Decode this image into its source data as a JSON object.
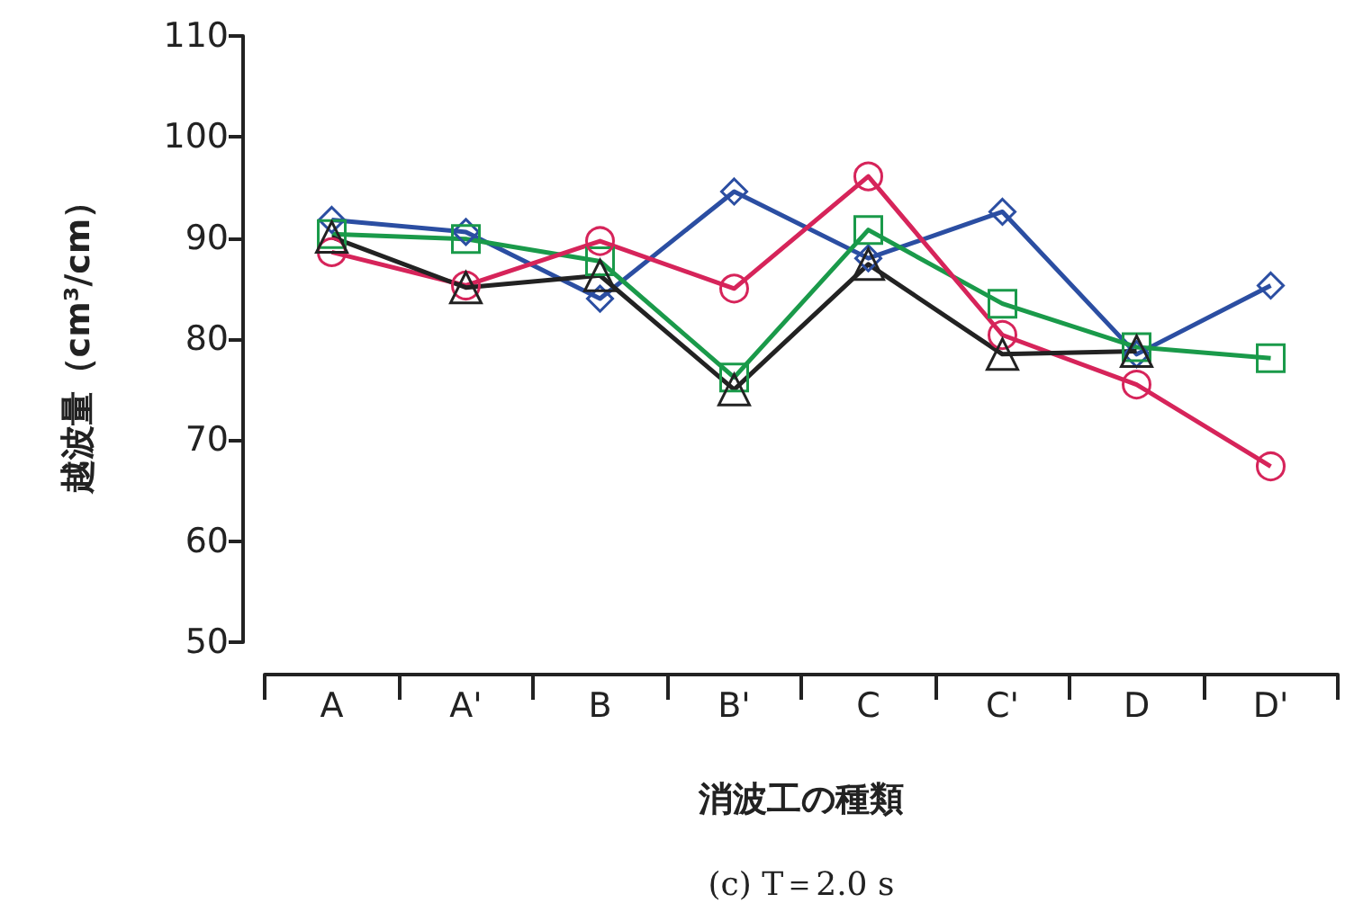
{
  "chart_data": {
    "type": "line",
    "title": "(c) T＝2.0 s",
    "xlabel": "消波工の種類",
    "ylabel": "越波量（cm³/cm）",
    "categories": [
      "A",
      "A'",
      "B",
      "B'",
      "C",
      "C'",
      "D",
      "D'"
    ],
    "ylim": [
      50,
      110
    ],
    "yticks": [
      50,
      60,
      70,
      80,
      90,
      100,
      110
    ],
    "grid": false,
    "line_style": "solid",
    "series": [
      {
        "color": "#2b4ea2",
        "marker": "diamond",
        "values": [
          91.8,
          90.6,
          84.0,
          94.6,
          88.0,
          92.6,
          78.5,
          85.3
        ]
      },
      {
        "color": "#1a9a4a",
        "marker": "square",
        "values": [
          90.4,
          89.9,
          87.7,
          76.2,
          90.8,
          83.5,
          79.2,
          78.1
        ]
      },
      {
        "color": "#d6245a",
        "marker": "circle",
        "values": [
          88.6,
          85.3,
          89.7,
          85.0,
          96.1,
          80.4,
          75.5,
          67.4
        ]
      },
      {
        "color": "#222222",
        "marker": "triangle",
        "values": [
          90.1,
          85.1,
          86.3,
          75.0,
          87.4,
          78.5,
          78.8,
          null
        ]
      }
    ]
  }
}
